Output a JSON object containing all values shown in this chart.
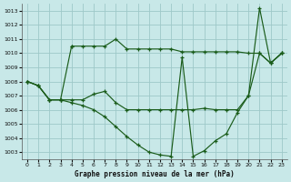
{
  "title": "Graphe pression niveau de la mer (hPa)",
  "bg_color": "#c8e8e8",
  "grid_color": "#9ec8c8",
  "line_color": "#1a5c1a",
  "xlim": [
    -0.5,
    23.5
  ],
  "ylim": [
    1002.5,
    1013.5
  ],
  "xticks": [
    0,
    1,
    2,
    3,
    4,
    5,
    6,
    7,
    8,
    9,
    10,
    11,
    12,
    13,
    14,
    15,
    16,
    17,
    18,
    19,
    20,
    21,
    22,
    23
  ],
  "yticks": [
    1003,
    1004,
    1005,
    1006,
    1007,
    1008,
    1009,
    1010,
    1011,
    1012,
    1013
  ],
  "figsize": [
    3.2,
    2.0
  ],
  "dpi": 100,
  "series": [
    {
      "x": [
        0,
        1,
        2,
        3,
        4,
        4,
        5,
        6,
        7,
        8,
        9,
        10,
        11,
        12,
        13,
        14,
        15,
        16,
        17,
        18,
        19,
        20,
        21,
        22,
        23
      ],
      "y": [
        1008.0,
        1007.7,
        1006.7,
        1006.7,
        1010.5,
        1010.5,
        1010.5,
        1010.5,
        1010.5,
        1011.0,
        1010.3,
        1010.3,
        1010.3,
        1010.3,
        1010.3,
        1010.1,
        1010.1,
        1010.1,
        1010.1,
        1010.1,
        1010.1,
        1010.0,
        1010.0,
        1009.3,
        1010.0
      ]
    },
    {
      "x": [
        0,
        1,
        2,
        3,
        4,
        5,
        6,
        7,
        8,
        9,
        10,
        11,
        12,
        13,
        14,
        15,
        16,
        17,
        18,
        19,
        20,
        21,
        22,
        23
      ],
      "y": [
        1008.0,
        1007.7,
        1006.7,
        1006.7,
        1006.7,
        1006.7,
        1007.1,
        1007.3,
        1006.5,
        1006.0,
        1006.0,
        1006.0,
        1006.0,
        1006.0,
        1006.0,
        1006.0,
        1006.1,
        1006.0,
        1006.0,
        1006.0,
        1007.0,
        1010.0,
        1009.3,
        1010.0
      ]
    },
    {
      "x": [
        0,
        1,
        2,
        3,
        4,
        5,
        6,
        7,
        8,
        9,
        10,
        11,
        12,
        13,
        14,
        15,
        16,
        17,
        18,
        19,
        20,
        21,
        22,
        23
      ],
      "y": [
        1008.0,
        1007.7,
        1006.7,
        1006.7,
        1006.5,
        1006.3,
        1006.0,
        1005.5,
        1004.8,
        1004.1,
        1003.5,
        1003.0,
        1002.8,
        1002.7,
        1009.7,
        1002.7,
        1003.1,
        1003.8,
        1004.3,
        1005.8,
        1007.0,
        1013.2,
        1009.3,
        1010.0
      ]
    }
  ]
}
